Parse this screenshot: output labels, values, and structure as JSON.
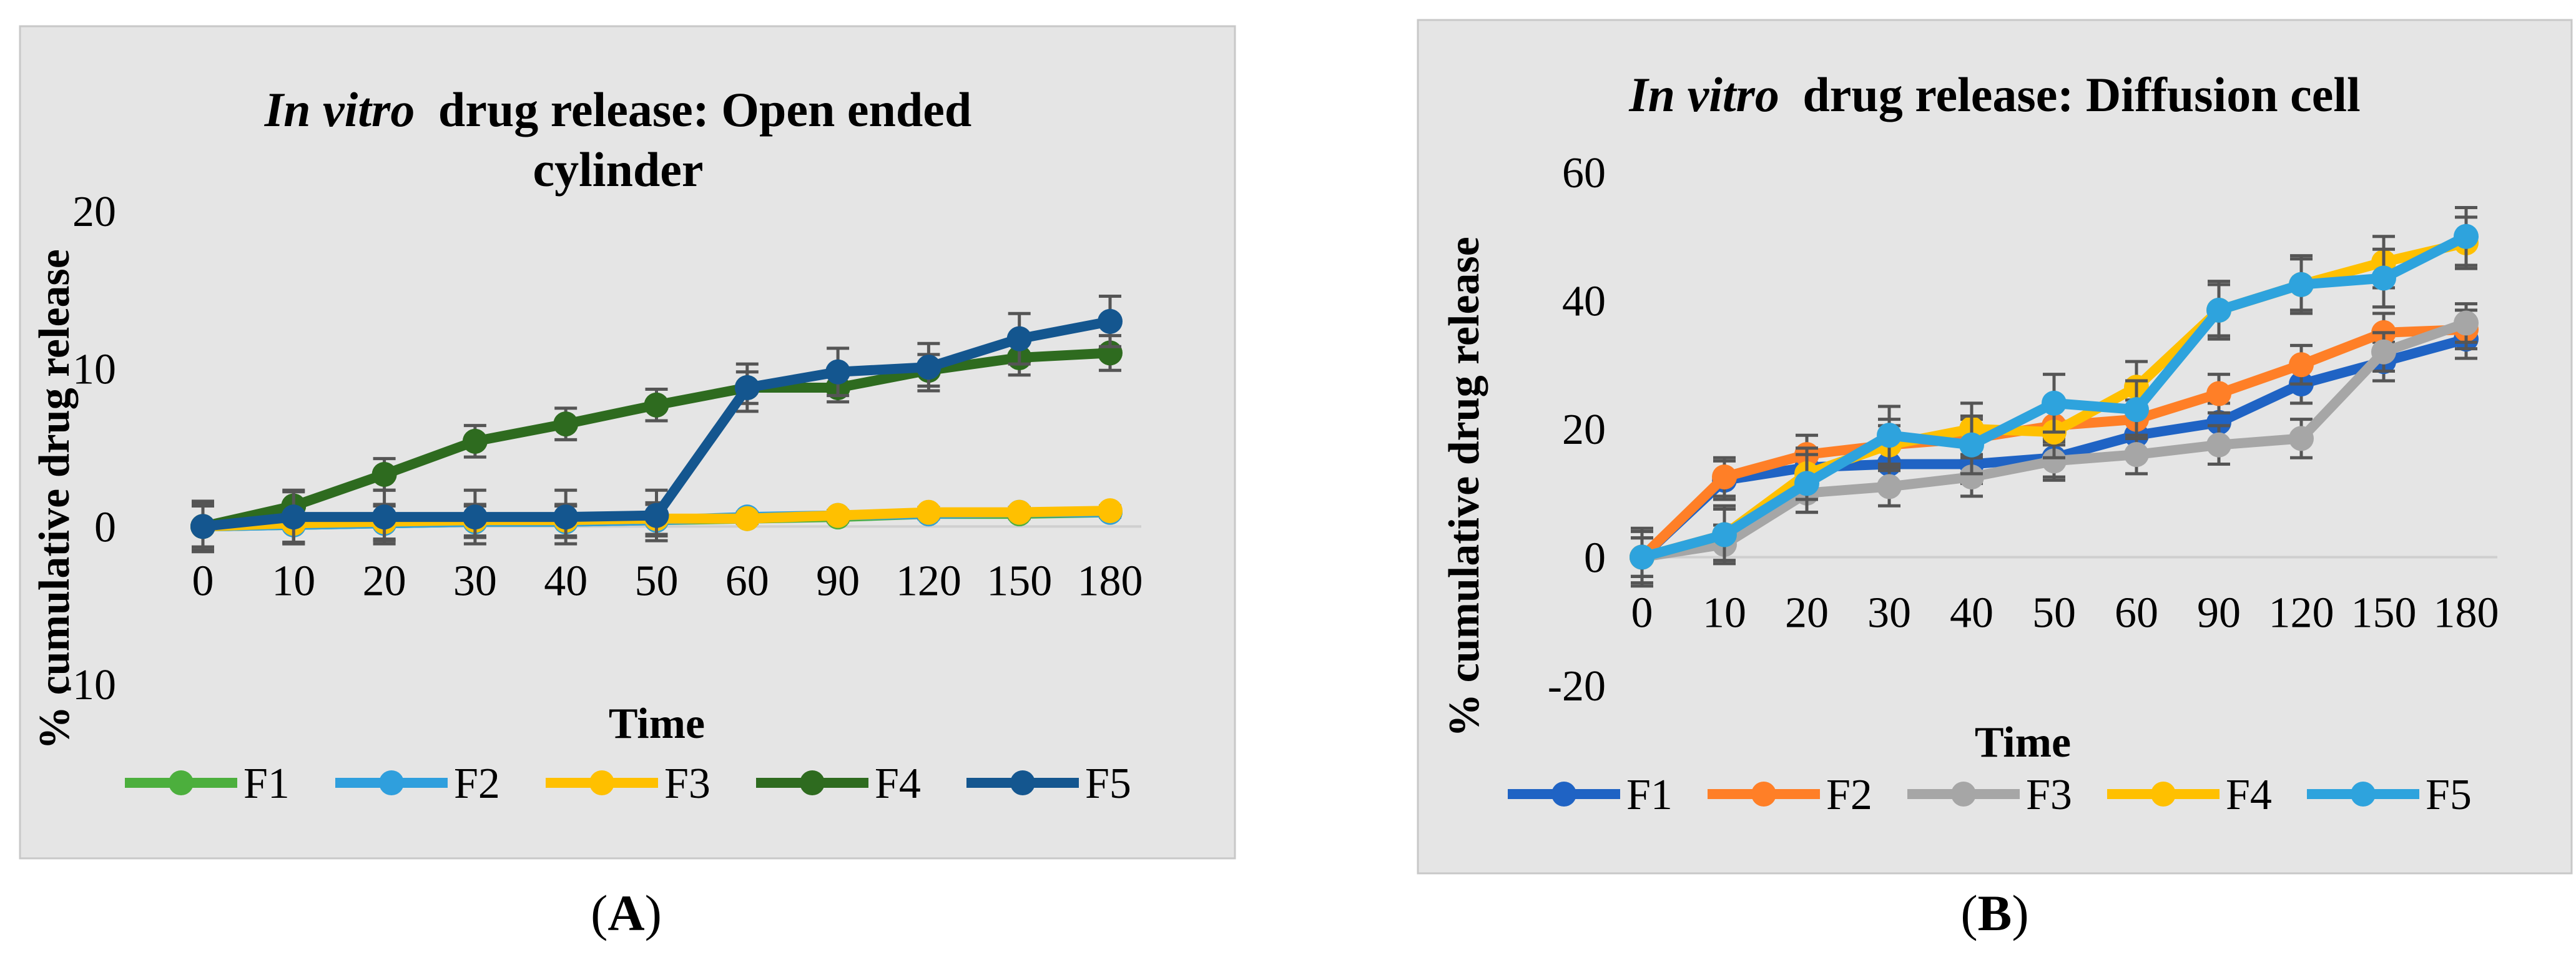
{
  "chart_data": [
    {
      "type": "line",
      "panel_label": "A",
      "title": {
        "italic": "In vitro",
        "rest": "drug release: Open ended",
        "line2": "cylinder"
      },
      "xlabel": "Time",
      "ylabel": "% cumulative drug release",
      "categories": [
        "0",
        "10",
        "20",
        "30",
        "40",
        "50",
        "60",
        "90",
        "120",
        "150",
        "180"
      ],
      "ylim": [
        -10,
        20
      ],
      "yticks": [
        -10,
        0,
        10,
        20
      ],
      "grid": false,
      "legend_position": "bottom",
      "series": [
        {
          "name": "F1",
          "color": "#4caf3d",
          "values": [
            0,
            0.1,
            0.2,
            0.3,
            0.3,
            0.4,
            0.5,
            0.6,
            0.8,
            0.8,
            0.9
          ],
          "err": [
            1.5,
            1.2,
            1.1,
            1.0,
            1.0,
            1.0,
            0.3,
            0.3,
            0.3,
            0.3,
            0.3
          ]
        },
        {
          "name": "F2",
          "color": "#2f9fdd",
          "values": [
            0,
            0.1,
            0.2,
            0.3,
            0.3,
            0.4,
            0.6,
            0.7,
            0.8,
            0.9,
            0.9
          ],
          "err": [
            1.5,
            1.2,
            1.1,
            1.0,
            1.0,
            1.0,
            0.3,
            0.3,
            0.3,
            0.3,
            0.3
          ]
        },
        {
          "name": "F3",
          "color": "#ffc000",
          "values": [
            0,
            0.2,
            0.3,
            0.4,
            0.4,
            0.5,
            0.5,
            0.7,
            0.9,
            0.9,
            1.0
          ],
          "err": [
            1.5,
            1.2,
            1.1,
            1.0,
            1.0,
            1.0,
            0.3,
            0.3,
            0.3,
            0.3,
            0.3
          ]
        },
        {
          "name": "F4",
          "color": "#2e6b1f",
          "values": [
            0,
            1.3,
            3.3,
            5.4,
            6.5,
            7.7,
            8.8,
            8.8,
            9.9,
            10.7,
            11.0
          ],
          "err": [
            1.3,
            1.0,
            1.0,
            1.0,
            1.0,
            1.0,
            1.0,
            0.9,
            1.0,
            1.1,
            1.1
          ]
        },
        {
          "name": "F5",
          "color": "#14568f",
          "values": [
            0,
            0.6,
            0.6,
            0.6,
            0.6,
            0.7,
            8.8,
            9.8,
            10.1,
            11.9,
            13.0
          ],
          "err": [
            1.6,
            1.6,
            1.7,
            1.7,
            1.7,
            1.6,
            1.5,
            1.5,
            1.5,
            1.6,
            1.6
          ]
        }
      ]
    },
    {
      "type": "line",
      "panel_label": "B",
      "title": {
        "italic": "In vitro",
        "rest": "drug release: Diffusion cell",
        "line2": ""
      },
      "xlabel": "Time",
      "ylabel": "% cumulative drug release",
      "categories": [
        "0",
        "10",
        "20",
        "30",
        "40",
        "50",
        "60",
        "90",
        "120",
        "150",
        "180"
      ],
      "ylim": [
        -20,
        60
      ],
      "yticks": [
        -20,
        0,
        20,
        40,
        60
      ],
      "grid": false,
      "legend_position": "bottom",
      "series": [
        {
          "name": "F1",
          "color": "#1f63c4",
          "values": [
            0,
            12,
            14,
            14.5,
            14.5,
            15.5,
            19,
            21,
            27,
            30.5,
            34
          ],
          "err": [
            3,
            3,
            3,
            3,
            3,
            3,
            3,
            3,
            3,
            3,
            3
          ]
        },
        {
          "name": "F2",
          "color": "#ff7f27",
          "values": [
            0,
            12.5,
            16,
            17.5,
            18.5,
            20.5,
            21.5,
            25.5,
            30,
            35,
            35.5
          ],
          "err": [
            3,
            3,
            3,
            3,
            3,
            3,
            3,
            3,
            3,
            3,
            3
          ]
        },
        {
          "name": "F3",
          "color": "#a6a6a6",
          "values": [
            0,
            2,
            10,
            11,
            12.5,
            15,
            16,
            17.5,
            18.5,
            32,
            36.5
          ],
          "err": [
            3,
            3,
            3,
            3,
            3,
            3,
            3,
            3,
            3,
            3,
            3
          ]
        },
        {
          "name": "F4",
          "color": "#ffc000",
          "values": [
            0,
            3.5,
            13,
            17.5,
            20,
            19.5,
            26.5,
            38.5,
            42.5,
            46,
            49
          ],
          "err": [
            4,
            4,
            4,
            4,
            4,
            4,
            4,
            4,
            4,
            4,
            4
          ]
        },
        {
          "name": "F5",
          "color": "#2ea3dd",
          "values": [
            0,
            3.5,
            11.5,
            19,
            17.5,
            24,
            23,
            38.5,
            42.5,
            43.5,
            50
          ],
          "err": [
            4.5,
            4.5,
            4.5,
            4.5,
            4.5,
            4.5,
            4.5,
            4.5,
            4.5,
            4.5,
            4.5
          ]
        }
      ]
    }
  ]
}
